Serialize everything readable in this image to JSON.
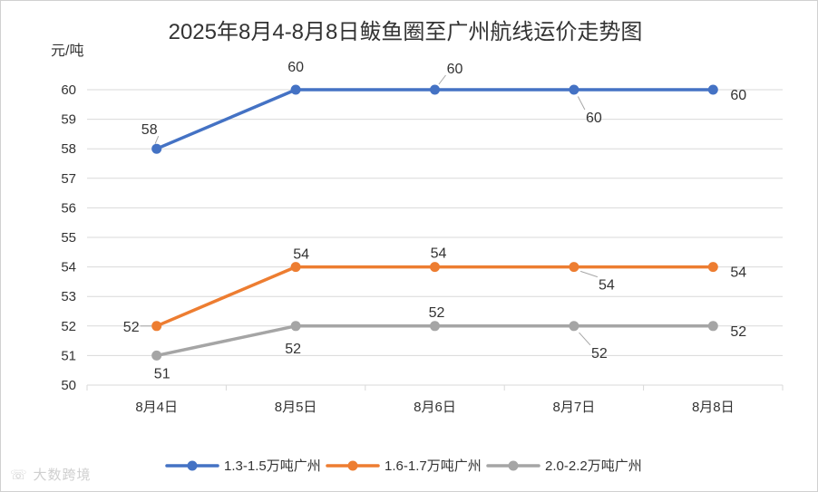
{
  "chart_data": {
    "type": "line",
    "title": "2025年8月4-8月8日鲅鱼圈至广州航线运价走势图",
    "ylabel": "元/吨",
    "xlabel": "",
    "categories": [
      "8月4日",
      "8月5日",
      "8月6日",
      "8月7日",
      "8月8日"
    ],
    "ylim": [
      50,
      60
    ],
    "yticks": [
      50,
      51,
      52,
      53,
      54,
      55,
      56,
      57,
      58,
      59,
      60
    ],
    "grid": true,
    "legend_position": "bottom",
    "series": [
      {
        "name": "1.3-1.5万吨广州",
        "color": "#4472C4",
        "values": [
          58,
          60,
          60,
          60,
          60
        ],
        "data_labels": [
          "58",
          "60",
          "60",
          "60",
          "60"
        ]
      },
      {
        "name": "1.6-1.7万吨广州",
        "color": "#ED7D31",
        "values": [
          52,
          54,
          54,
          54,
          54
        ],
        "data_labels": [
          "52",
          "54",
          "54",
          "54",
          "54"
        ]
      },
      {
        "name": "2.0-2.2万吨广州",
        "color": "#A5A5A5",
        "values": [
          51,
          52,
          52,
          52,
          52
        ],
        "data_labels": [
          "51",
          "52",
          "52",
          "52",
          "52"
        ]
      }
    ]
  },
  "watermark": {
    "text": "大数跨境"
  }
}
